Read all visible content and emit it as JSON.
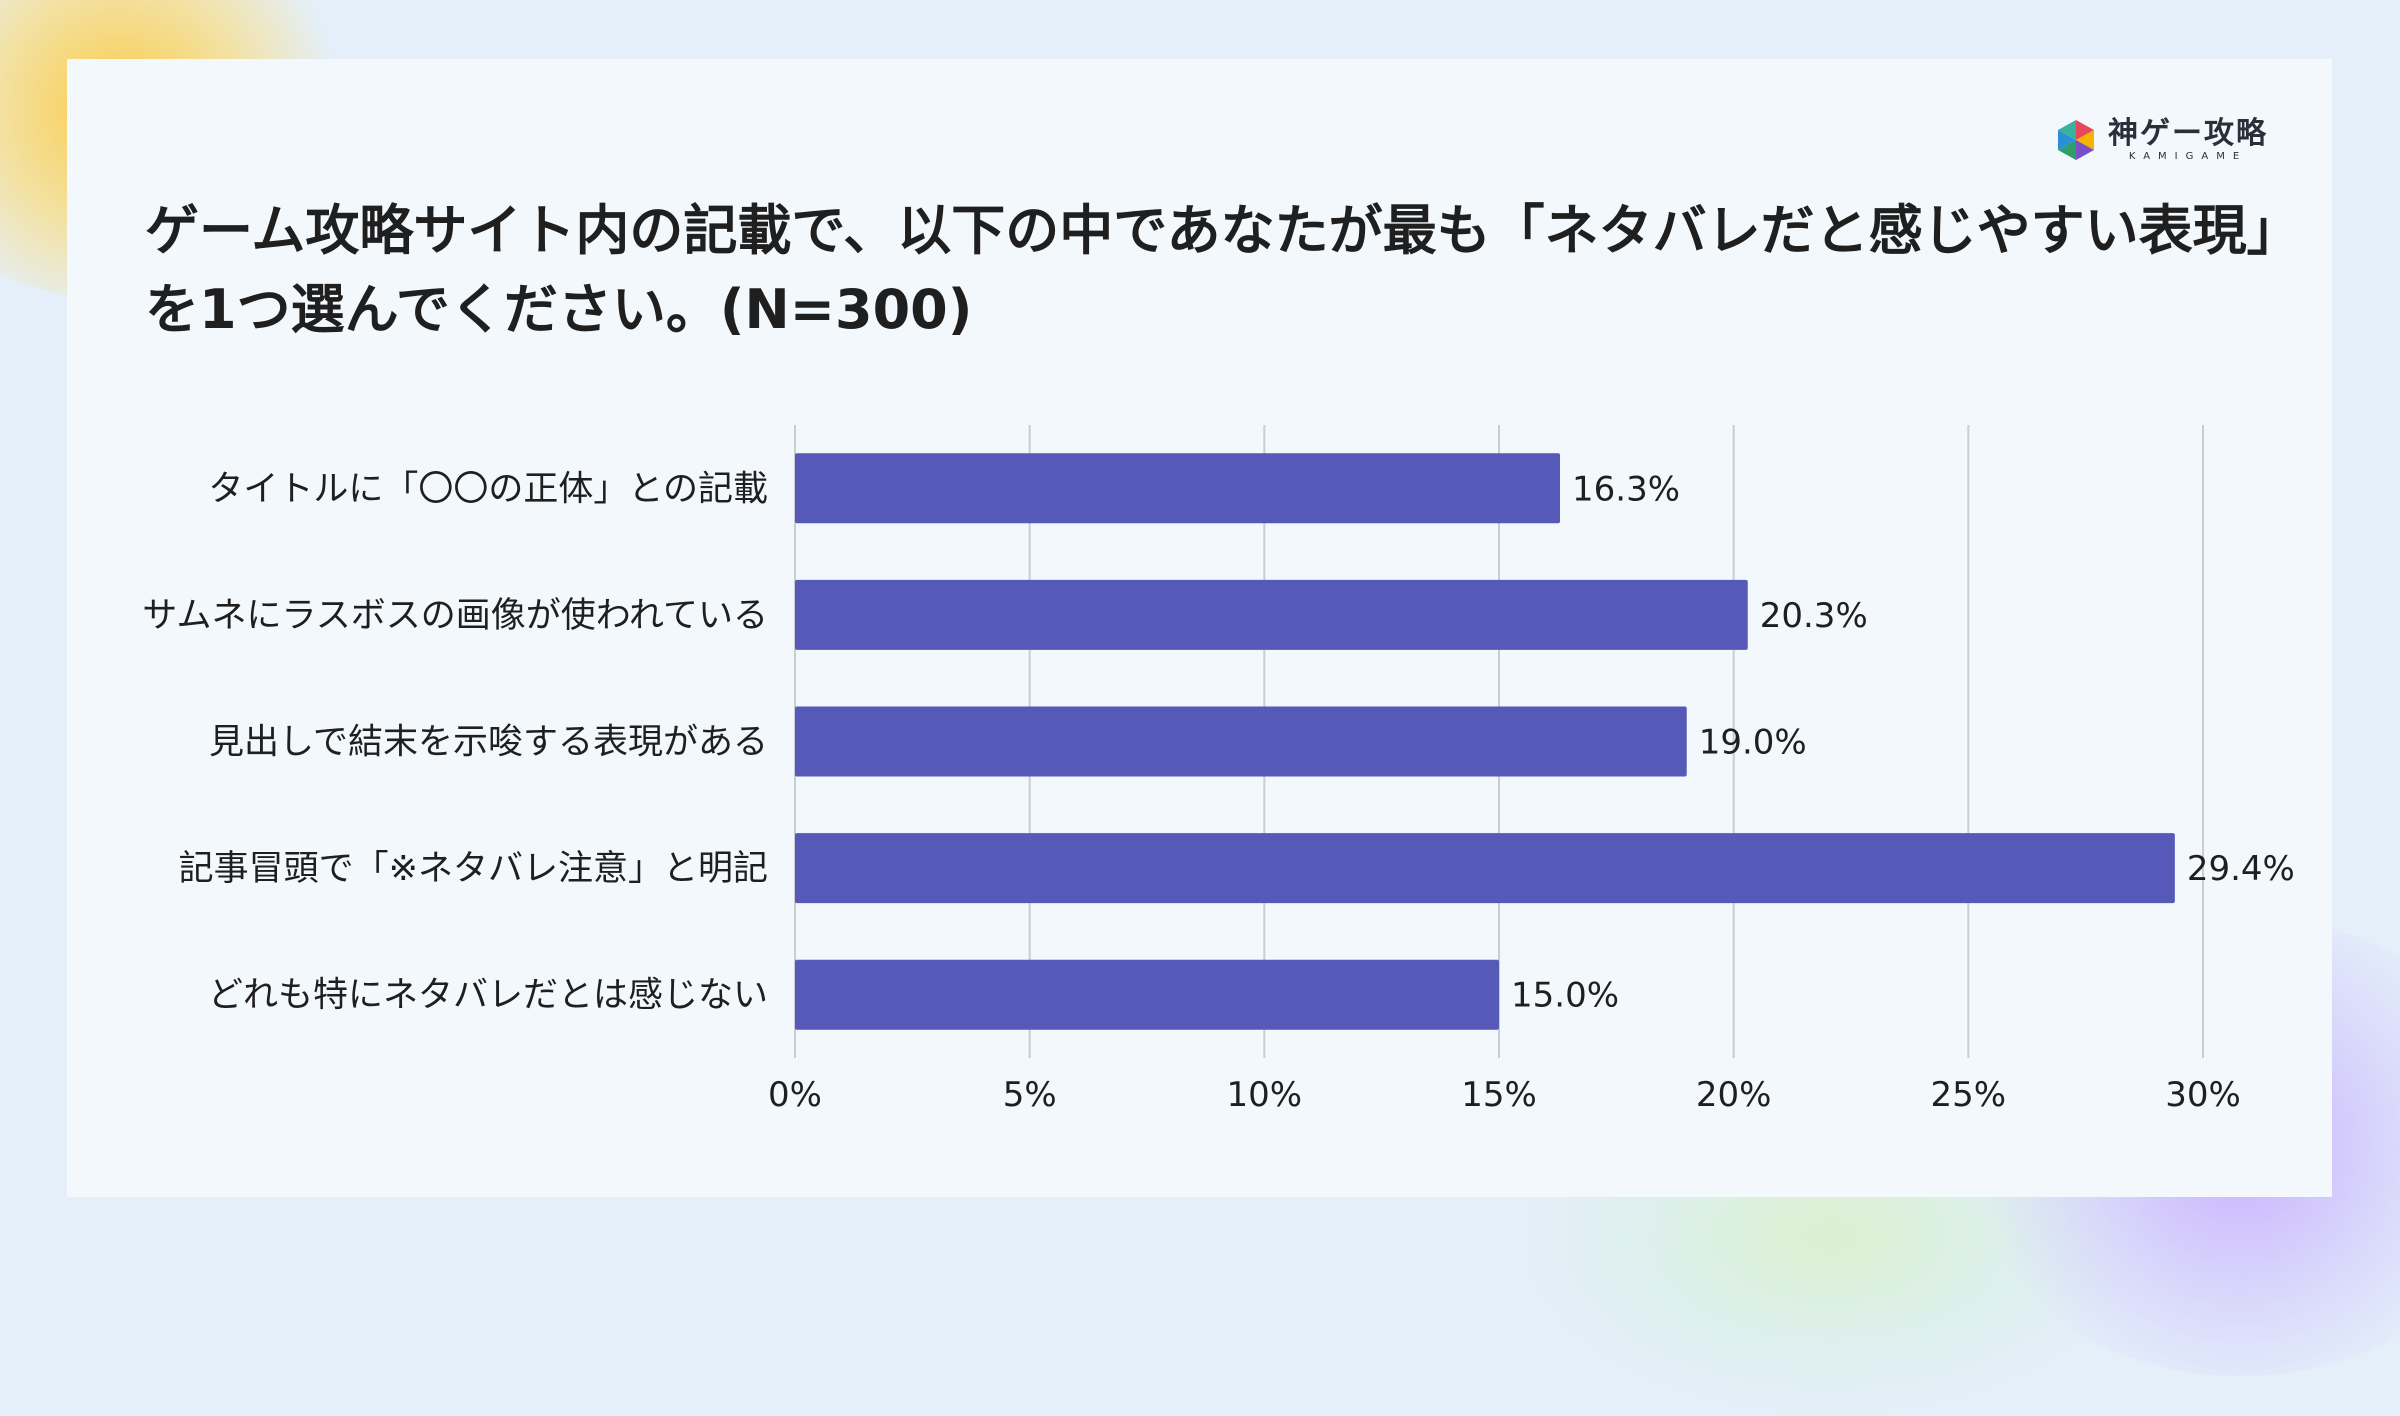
{
  "logo": {
    "name": "神ゲー攻略",
    "sub": "KAMIGAME"
  },
  "title": "ゲーム攻略サイト内の記載で、以下の中であなたが最も「ネタバレだと感じやすい表現」を1つ選んでください。(N=300)",
  "colors": {
    "bar": "#5659b8",
    "grid": "#c9ccd2",
    "card": "#f3f8fd",
    "background": "#e4eff9"
  },
  "chart_data": {
    "type": "bar",
    "orientation": "horizontal",
    "categories": [
      "タイトルに「〇〇の正体」との記載",
      "サムネにラスボスの画像が使われている",
      "見出しで結末を示唆する表現がある",
      "記事冒頭で「※ネタバレ注意」と明記",
      "どれも特にネタバレだとは感じない"
    ],
    "values": [
      16.3,
      20.3,
      19.0,
      29.4,
      15.0
    ],
    "value_labels": [
      "16.3%",
      "20.3%",
      "19.0%",
      "29.4%",
      "15.0%"
    ],
    "xlim": [
      0,
      30
    ],
    "xticks": [
      0,
      5,
      10,
      15,
      20,
      25,
      30
    ],
    "xtick_labels": [
      "0%",
      "5%",
      "10%",
      "15%",
      "20%",
      "25%",
      "30%"
    ],
    "grid": true,
    "legend": false
  }
}
